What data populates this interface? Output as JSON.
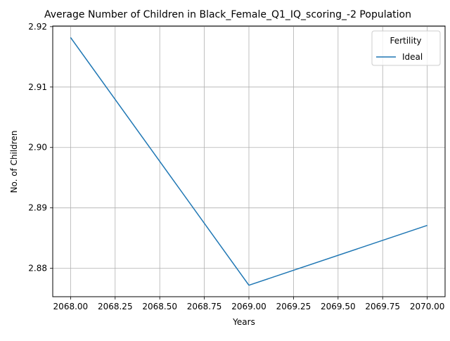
{
  "chart_data": {
    "type": "line",
    "title": "Average Number of Children in Black_Female_Q1_IQ_scoring_-2 Population",
    "xlabel": "Years",
    "ylabel": "No. of Children",
    "xlim": [
      2067.9,
      2070.1
    ],
    "ylim": [
      2.8753,
      2.9201
    ],
    "x_ticks": [
      2068.0,
      2068.25,
      2068.5,
      2068.75,
      2069.0,
      2069.25,
      2069.5,
      2069.75,
      2070.0
    ],
    "x_tick_labels": [
      "2068.00",
      "2068.25",
      "2068.50",
      "2068.75",
      "2069.00",
      "2069.25",
      "2069.50",
      "2069.75",
      "2070.00"
    ],
    "y_ticks": [
      2.88,
      2.89,
      2.9,
      2.91,
      2.92
    ],
    "y_tick_labels": [
      "2.88",
      "2.89",
      "2.90",
      "2.91",
      "2.92"
    ],
    "grid": true,
    "legend": {
      "title": "Fertility",
      "placement": "top-right"
    },
    "series": [
      {
        "name": "Ideal",
        "color": "#1f77b4",
        "x": [
          2068,
          2069,
          2070
        ],
        "y": [
          2.9182,
          2.8772,
          2.8871
        ]
      }
    ]
  }
}
